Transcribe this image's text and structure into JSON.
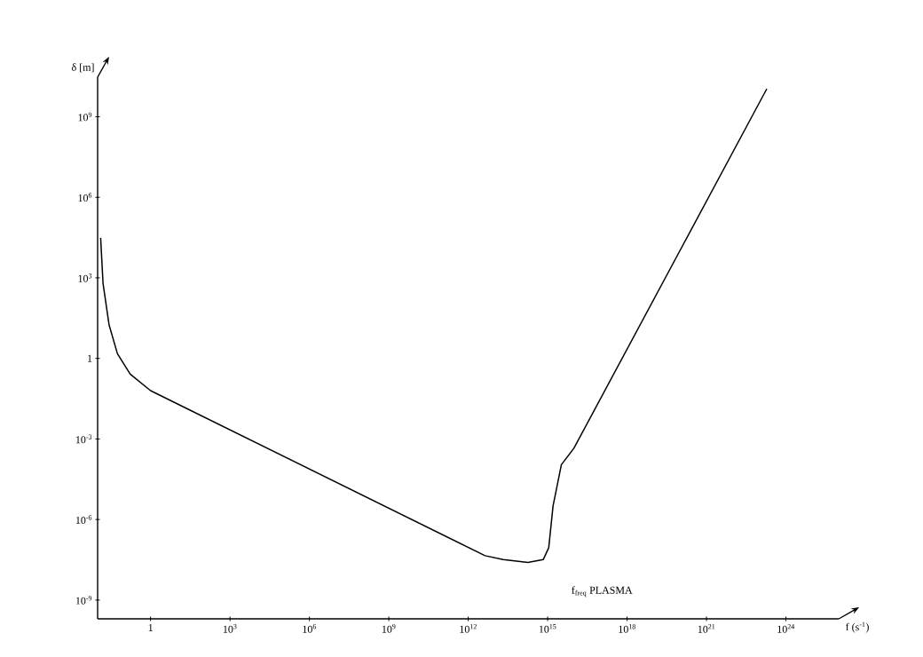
{
  "chart_data": {
    "type": "line",
    "xlabel": "f (s$^{-1}$)",
    "ylabel": "δ [m]",
    "log": "xy",
    "grid": false,
    "xlim": [
      0.01,
      1e+26
    ],
    "ylim": [
      2e-10,
      30000000000.0
    ],
    "xticks": [
      {
        "value": 1,
        "label": "1"
      },
      {
        "value": 1000.0,
        "label": "10$^{3}$"
      },
      {
        "value": 1000000.0,
        "label": "10$^{6}$"
      },
      {
        "value": 1000000000.0,
        "label": "10$^{9}$"
      },
      {
        "value": 1000000000000.0,
        "label": "10$^{12}$"
      },
      {
        "value": 1000000000000000.0,
        "label": "10$^{15}$"
      },
      {
        "value": 1e+18,
        "label": "10$^{18}$"
      },
      {
        "value": 1e+21,
        "label": "10$^{21}$"
      },
      {
        "value": 1e+24,
        "label": "10$^{24}$"
      }
    ],
    "yticks": [
      {
        "value": 1e-09,
        "label": "10$^{-9}$"
      },
      {
        "value": 1e-06,
        "label": "10$^{-6}$"
      },
      {
        "value": 0.001,
        "label": "10$^{-3}$"
      },
      {
        "value": 1,
        "label": "1"
      },
      {
        "value": 1000.0,
        "label": "10$^{3}$"
      },
      {
        "value": 1000000.0,
        "label": "10$^{6}$"
      },
      {
        "value": 1000000000.0,
        "label": "10$^{9}$"
      }
    ],
    "annotations": [
      "f$_{freq}$ PLASMA"
    ],
    "series": [
      {
        "color": "#000000",
        "line_style": "solid",
        "x": [
          0.013,
          0.016,
          0.027,
          0.056,
          0.17,
          1,
          4300000000000.0,
          21000000000000.0,
          180000000000000.0,
          680000000000000.0,
          1100000000000000.0,
          1600000000000000.0,
          3300000000000000.0,
          9800000000000000.0,
          1.9e+23
        ],
        "values": [
          31000.0,
          630,
          18,
          1.5,
          0.26,
          0.063,
          4.5e-08,
          3.2e-08,
          2.5e-08,
          3.2e-08,
          8.9e-08,
          3.2e-06,
          0.00011,
          0.00045,
          11000000000.0
        ]
      }
    ]
  }
}
